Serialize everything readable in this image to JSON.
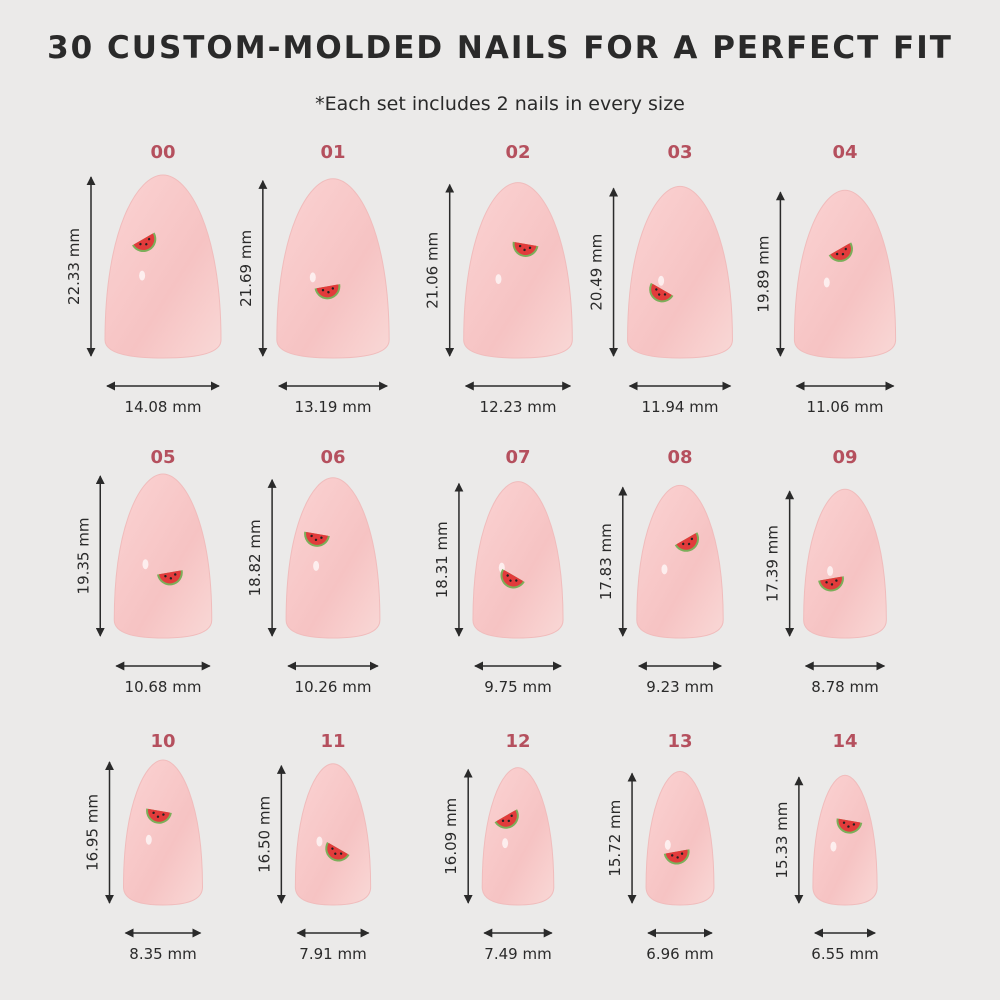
{
  "title": "30 CUSTOM-MOLDED NAILS FOR A PERFECT FIT",
  "subtitle": "*Each set includes 2 nails in every size",
  "nails": [
    {
      "size": "00",
      "height": "22.33 mm",
      "width": "14.08 mm"
    },
    {
      "size": "01",
      "height": "21.69 mm",
      "width": "13.19 mm"
    },
    {
      "size": "02",
      "height": "21.06 mm",
      "width": "12.23 mm"
    },
    {
      "size": "03",
      "height": "20.49 mm",
      "width": "11.94 mm"
    },
    {
      "size": "04",
      "height": "19.89 mm",
      "width": "11.06 mm"
    },
    {
      "size": "05",
      "height": "19.35 mm",
      "width": "10.68 mm"
    },
    {
      "size": "06",
      "height": "18.82 mm",
      "width": "10.26 mm"
    },
    {
      "size": "07",
      "height": "18.31 mm",
      "width": "9.75 mm"
    },
    {
      "size": "08",
      "height": "17.83 mm",
      "width": "9.23 mm"
    },
    {
      "size": "09",
      "height": "17.39 mm",
      "width": "8.78 mm"
    },
    {
      "size": "10",
      "height": "16.95 mm",
      "width": "8.35 mm"
    },
    {
      "size": "11",
      "height": "16.50 mm",
      "width": "7.91 mm"
    },
    {
      "size": "12",
      "height": "16.09 mm",
      "width": "7.49 mm"
    },
    {
      "size": "13",
      "height": "15.72 mm",
      "width": "6.96 mm"
    },
    {
      "size": "14",
      "height": "15.33 mm",
      "width": "6.55 mm"
    }
  ]
}
